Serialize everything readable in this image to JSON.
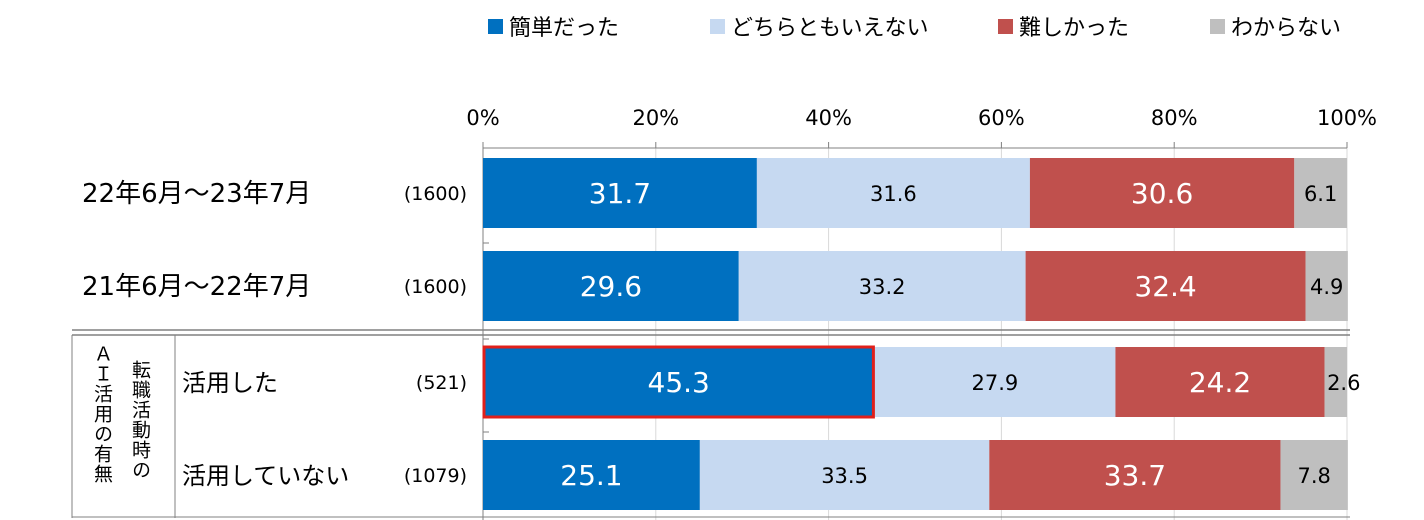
{
  "legend_labels": [
    "簡単だった",
    "どちらともいえない",
    "難しかった",
    "わからない"
  ],
  "colors": [
    "#0070c0",
    "#c6d9f1",
    "#c0504d",
    "#bfbfbf"
  ],
  "highlight_color": "#e0201b",
  "row_labels": [
    "22年6月～23年7月",
    "21年6月～22年7月",
    "活用した",
    "活用していない"
  ],
  "row_counts": [
    "(1600)",
    "(1600)",
    "(521)",
    "(1079)"
  ],
  "group_label_outer": "ＡＩ活用の有無",
  "group_label_inner": "転職活動時の",
  "chart_data": {
    "type": "bar",
    "orientation": "horizontal",
    "stacked": true,
    "xlim": [
      0,
      100
    ],
    "x_ticks": [
      "0%",
      "20%",
      "40%",
      "60%",
      "80%",
      "100%"
    ],
    "categories": [
      "22年6月～23年7月",
      "21年6月～22年7月",
      "活用した",
      "活用していない"
    ],
    "series": [
      {
        "name": "簡単だった",
        "values": [
          31.7,
          29.6,
          45.3,
          25.1
        ]
      },
      {
        "name": "どちらともいえない",
        "values": [
          31.6,
          33.2,
          27.9,
          33.5
        ]
      },
      {
        "name": "難しかった",
        "values": [
          30.6,
          32.4,
          24.2,
          33.7
        ]
      },
      {
        "name": "わからない",
        "values": [
          6.1,
          4.9,
          2.6,
          7.8
        ]
      }
    ],
    "value_labels": [
      [
        "31.7",
        "31.6",
        "30.6",
        "6.1"
      ],
      [
        "29.6",
        "33.2",
        "32.4",
        "4.9"
      ],
      [
        "45.3",
        "27.9",
        "24.2",
        "2.6"
      ],
      [
        "25.1",
        "33.5",
        "33.7",
        "7.8"
      ]
    ],
    "highlighted": {
      "series": 0,
      "category": 2
    },
    "legend_position": "top",
    "grid": true
  }
}
